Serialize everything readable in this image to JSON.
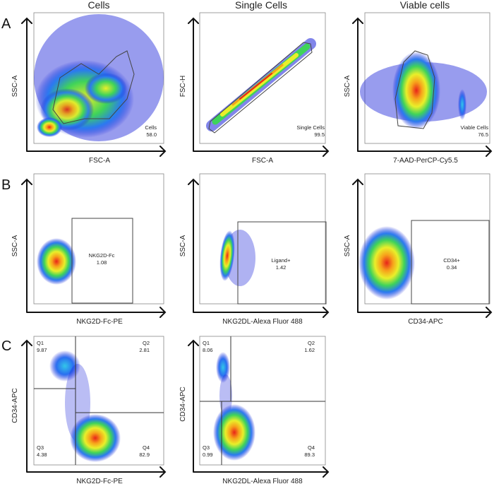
{
  "figure": {
    "column_titles": [
      "Cells",
      "Single Cells",
      "Viable cells"
    ],
    "row_labels": [
      "A",
      "B",
      "C"
    ]
  },
  "chart_data": [
    {
      "type": "scatter",
      "panel": "A1",
      "title": "Cells",
      "xlabel": "FSC-A",
      "ylabel": "SSC-A",
      "gates": [
        {
          "name": "Cells",
          "value": "58.0"
        }
      ]
    },
    {
      "type": "scatter",
      "panel": "A2",
      "title": "Single Cells",
      "xlabel": "FSC-A",
      "ylabel": "FSC-H",
      "gates": [
        {
          "name": "Single Cells",
          "value": "99.5"
        }
      ]
    },
    {
      "type": "scatter",
      "panel": "A3",
      "title": "Viable cells",
      "xlabel": "7-AAD-PerCP-Cy5.5",
      "ylabel": "SSC-A",
      "gates": [
        {
          "name": "Viable Cells",
          "value": "76.5"
        }
      ]
    },
    {
      "type": "scatter",
      "panel": "B1",
      "xlabel": "NKG2D-Fc-PE",
      "ylabel": "SSC-A",
      "gates": [
        {
          "name": "NKG2D-Fc",
          "value": "1.08"
        }
      ]
    },
    {
      "type": "scatter",
      "panel": "B2",
      "xlabel": "NKG2DL-Alexa Fluor 488",
      "ylabel": "SSC-A",
      "gates": [
        {
          "name": "Ligand+",
          "value": "1.42"
        }
      ]
    },
    {
      "type": "scatter",
      "panel": "B3",
      "xlabel": "CD34-APC",
      "ylabel": "SSC-A",
      "gates": [
        {
          "name": "CD34+",
          "value": "0.34"
        }
      ]
    },
    {
      "type": "scatter",
      "panel": "C1",
      "xlabel": "NKG2D-Fc-PE",
      "ylabel": "CD34-APC",
      "gates": [
        {
          "name": "Q1",
          "value": "9.87"
        },
        {
          "name": "Q2",
          "value": "2.81"
        },
        {
          "name": "Q3",
          "value": "4.38"
        },
        {
          "name": "Q4",
          "value": "82.9"
        }
      ]
    },
    {
      "type": "scatter",
      "panel": "C2",
      "xlabel": "NKG2DL-Alexa Fluor 488",
      "ylabel": "CD34-APC",
      "gates": [
        {
          "name": "Q1",
          "value": "8.06"
        },
        {
          "name": "Q2",
          "value": "1.62"
        },
        {
          "name": "Q3",
          "value": "0.99"
        },
        {
          "name": "Q4",
          "value": "89.3"
        }
      ]
    }
  ]
}
